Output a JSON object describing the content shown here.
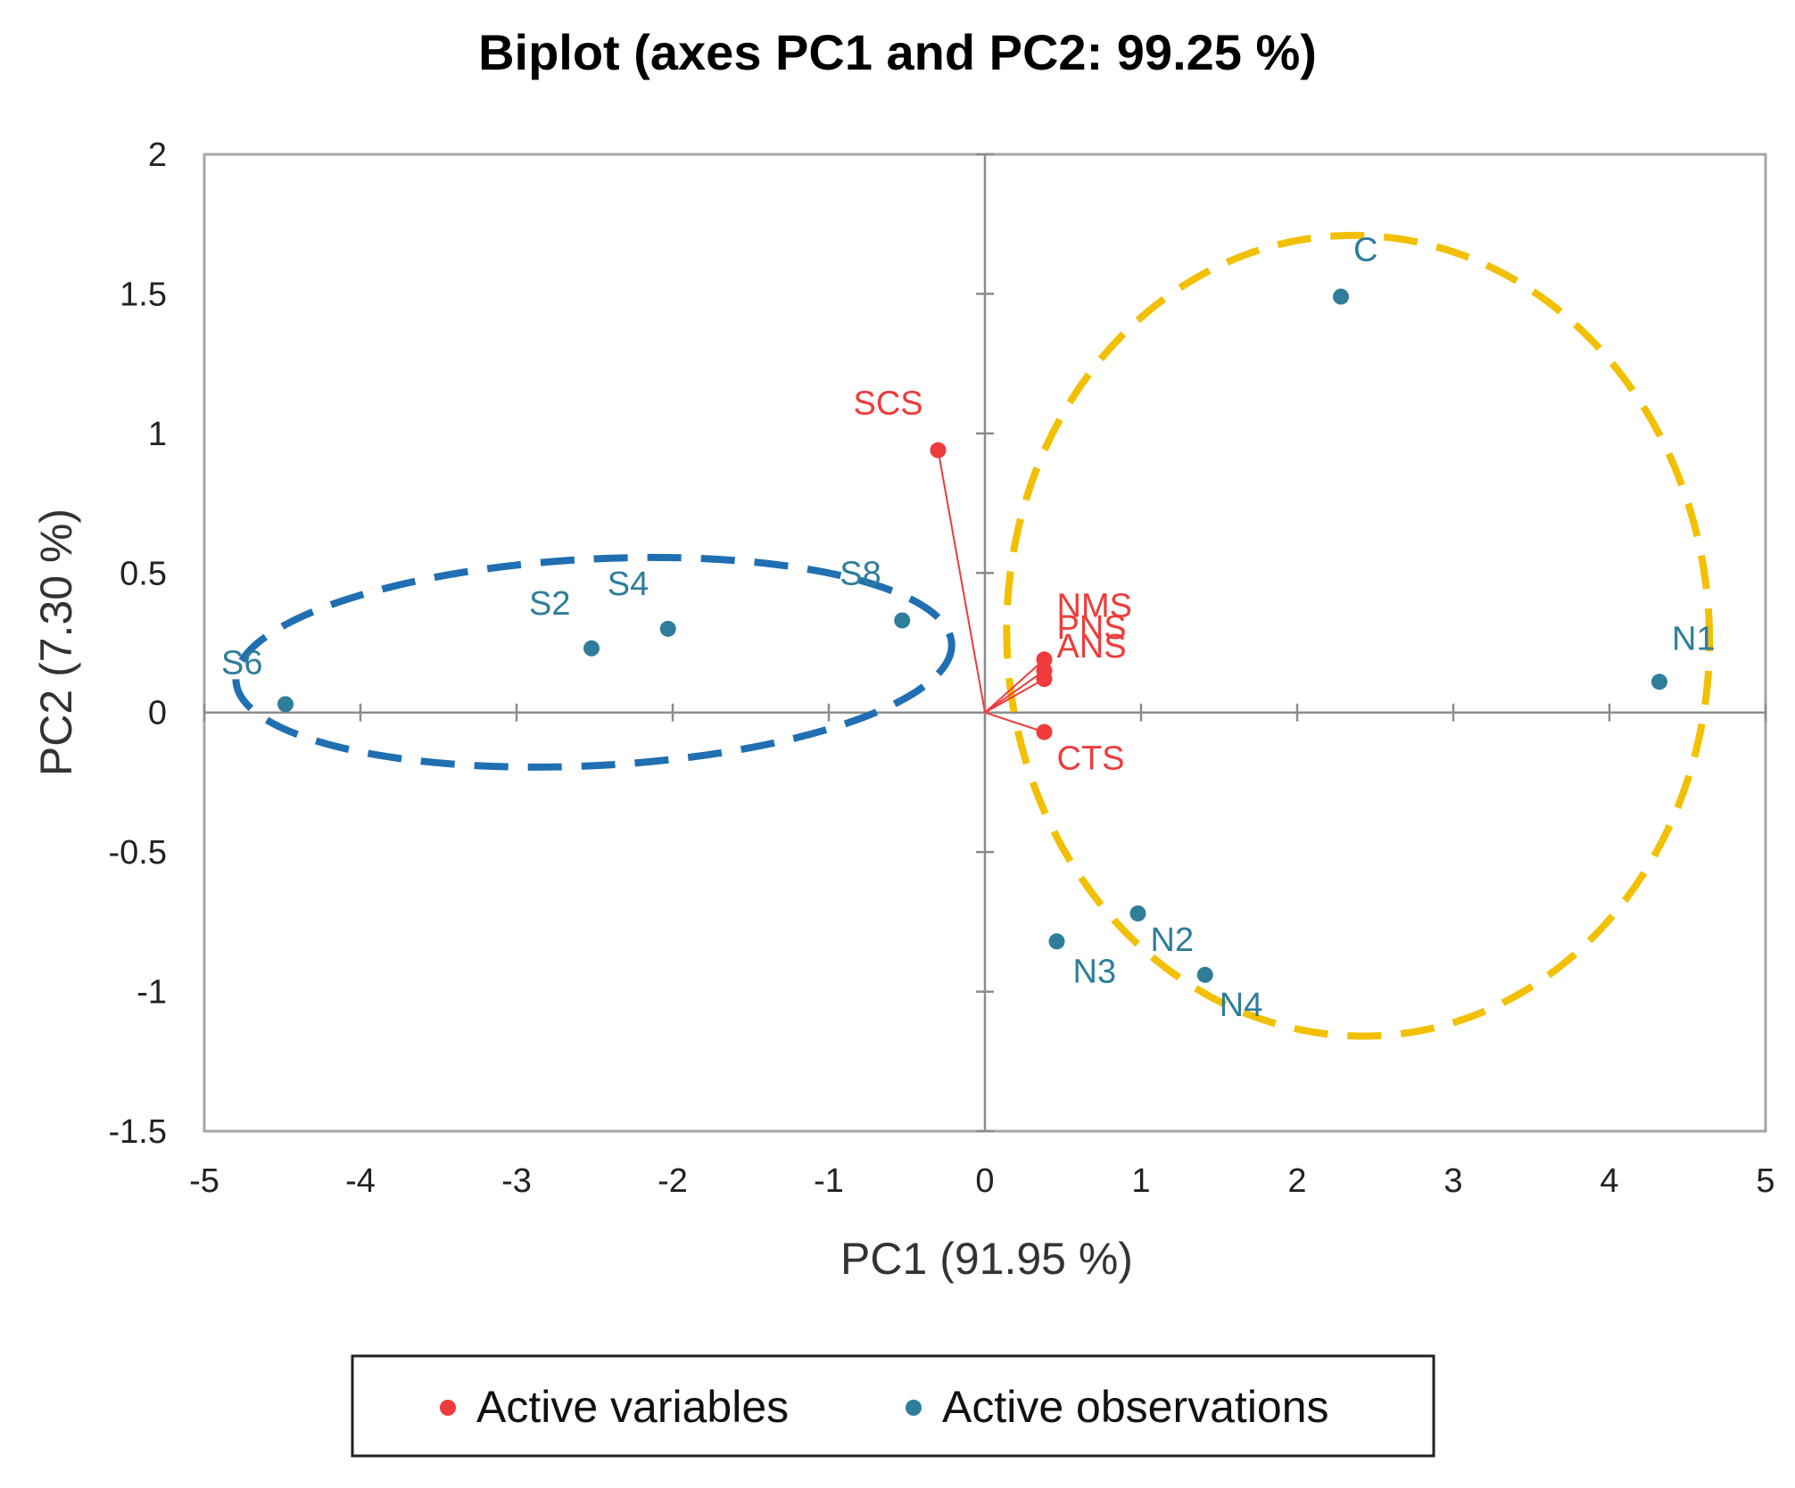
{
  "chart_data": {
    "type": "scatter",
    "subtype": "biplot",
    "title": "Biplot (axes PC1 and PC2: 99.25 %)",
    "xlabel": "PC1 (91.95 %)",
    "ylabel": "PC2 (7.30 %)",
    "xlim": [
      -5,
      5
    ],
    "ylim": [
      -1.5,
      2
    ],
    "xticks": [
      "-5",
      "-4",
      "-3",
      "-2",
      "-1",
      "0",
      "1",
      "2",
      "3",
      "4",
      "5"
    ],
    "yticks": [
      "2",
      "1.5",
      "1",
      "0.5",
      "0",
      "-0.5",
      "-1",
      "-1.5"
    ],
    "grid": false,
    "legend_position": "bottom",
    "legend": [
      {
        "label": "Active variables",
        "color": "#ef3b3b"
      },
      {
        "label": "Active observations",
        "color": "#2e7d9a"
      }
    ],
    "observations": [
      {
        "label": "C",
        "x": 2.28,
        "y": 1.49
      },
      {
        "label": "N1",
        "x": 4.32,
        "y": 0.11
      },
      {
        "label": "N2",
        "x": 0.98,
        "y": -0.72
      },
      {
        "label": "N3",
        "x": 0.46,
        "y": -0.82
      },
      {
        "label": "N4",
        "x": 1.41,
        "y": -0.94
      },
      {
        "label": "S2",
        "x": -2.52,
        "y": 0.23
      },
      {
        "label": "S4",
        "x": -2.03,
        "y": 0.3
      },
      {
        "label": "S6",
        "x": -4.48,
        "y": 0.03
      },
      {
        "label": "S8",
        "x": -0.53,
        "y": 0.33
      }
    ],
    "variables": [
      {
        "label": "SCS",
        "x": -0.3,
        "y": 0.94
      },
      {
        "label": "CTS",
        "x": 0.38,
        "y": -0.07
      },
      {
        "label": "NMS",
        "x": 0.38,
        "y": 0.19
      },
      {
        "label": "PNS",
        "x": 0.38,
        "y": 0.15
      },
      {
        "label": "ANS",
        "x": 0.38,
        "y": 0.12
      }
    ],
    "groups": [
      {
        "name": "blue-cluster",
        "color": "#1f6fb2",
        "members": [
          "S2",
          "S4",
          "S6",
          "S8"
        ]
      },
      {
        "name": "yellow-cluster",
        "color": "#f2c000",
        "members": [
          "C",
          "N1",
          "N2",
          "N3",
          "N4"
        ]
      }
    ]
  }
}
